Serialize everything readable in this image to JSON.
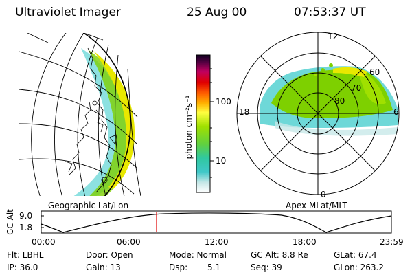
{
  "header": {
    "instrument": "Ultraviolet Imager",
    "date": "25 Aug 00",
    "time": "07:53:37 UT"
  },
  "geo_panel": {
    "label": "Geographic Lat/Lon"
  },
  "colorbar": {
    "unit_label": "photon cm⁻²s⁻¹",
    "tick_100": "100",
    "tick_10": "10"
  },
  "polar_panel": {
    "label": "Apex MLat/MLT",
    "mlt_12": "12",
    "mlt_18": "18",
    "mlt_6": "6",
    "mlt_0": "0",
    "lat_60": "60",
    "lat_70": "70",
    "lat_80": "80"
  },
  "altitude_plot": {
    "ylabel": "GC Alt",
    "y_top": "9.0",
    "y_bottom": "1.8",
    "x_ticks": [
      "00:00",
      "06:00",
      "12:00",
      "18:00",
      "23:59"
    ],
    "current_marker_time": "07:53:37",
    "marker_color": "#e00000"
  },
  "info": {
    "flt": "Flt: LBHL",
    "ip": "IP: 36.0",
    "door": "Door: Open",
    "gain": "Gain: 13",
    "mode": "Mode: Normal",
    "dsp_label": "Dsp:",
    "dsp_value": "5.1",
    "gc_alt": "GC Alt: 8.8 Re",
    "seq": "Seq: 39",
    "glat": "GLat: 67.4",
    "glon": "GLon: 263.2"
  },
  "colors": {
    "aurora_high": "#e8e800",
    "aurora_mid": "#7ed000",
    "aurora_low": "#30c8c8"
  }
}
